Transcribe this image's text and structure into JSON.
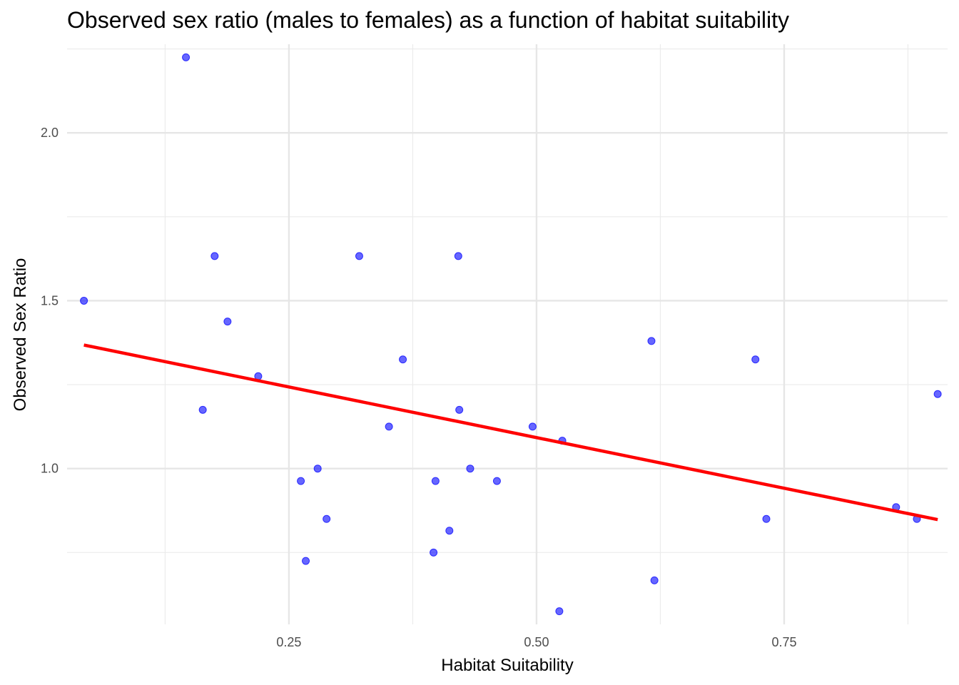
{
  "chart_data": {
    "type": "scatter",
    "title": "Observed sex ratio (males to females) as a function of habitat suitability",
    "xlabel": "Habitat Suitability",
    "ylabel": "Observed Sex Ratio",
    "xlim": [
      0.026,
      0.915
    ],
    "ylim": [
      0.536,
      2.264
    ],
    "x_ticks": [
      0.25,
      0.5,
      0.75
    ],
    "x_tick_labels": [
      "0.25",
      "0.50",
      "0.75"
    ],
    "y_ticks": [
      1.0,
      1.5,
      2.0
    ],
    "y_tick_labels": [
      "1.0",
      "1.5",
      "2.0"
    ],
    "grid": true,
    "point_color": "#0000ff",
    "trend_color": "#ff0000",
    "points": [
      {
        "x": 0.043,
        "y": 1.5
      },
      {
        "x": 0.146,
        "y": 2.225
      },
      {
        "x": 0.175,
        "y": 1.633
      },
      {
        "x": 0.188,
        "y": 1.438
      },
      {
        "x": 0.163,
        "y": 1.175
      },
      {
        "x": 0.219,
        "y": 1.275
      },
      {
        "x": 0.262,
        "y": 0.963
      },
      {
        "x": 0.267,
        "y": 0.725
      },
      {
        "x": 0.279,
        "y": 1.0
      },
      {
        "x": 0.288,
        "y": 0.85
      },
      {
        "x": 0.321,
        "y": 1.633
      },
      {
        "x": 0.351,
        "y": 1.125
      },
      {
        "x": 0.365,
        "y": 1.325
      },
      {
        "x": 0.396,
        "y": 0.75
      },
      {
        "x": 0.398,
        "y": 0.963
      },
      {
        "x": 0.412,
        "y": 0.815
      },
      {
        "x": 0.421,
        "y": 1.633
      },
      {
        "x": 0.422,
        "y": 1.175
      },
      {
        "x": 0.433,
        "y": 1.0
      },
      {
        "x": 0.46,
        "y": 0.963
      },
      {
        "x": 0.496,
        "y": 1.125
      },
      {
        "x": 0.523,
        "y": 0.575
      },
      {
        "x": 0.526,
        "y": 1.083
      },
      {
        "x": 0.616,
        "y": 1.38
      },
      {
        "x": 0.619,
        "y": 0.667
      },
      {
        "x": 0.721,
        "y": 1.325
      },
      {
        "x": 0.732,
        "y": 0.85
      },
      {
        "x": 0.863,
        "y": 0.885
      },
      {
        "x": 0.884,
        "y": 0.85
      },
      {
        "x": 0.905,
        "y": 1.222
      }
    ],
    "trend_line": {
      "x": [
        0.043,
        0.905
      ],
      "y": [
        1.368,
        0.848
      ]
    }
  }
}
